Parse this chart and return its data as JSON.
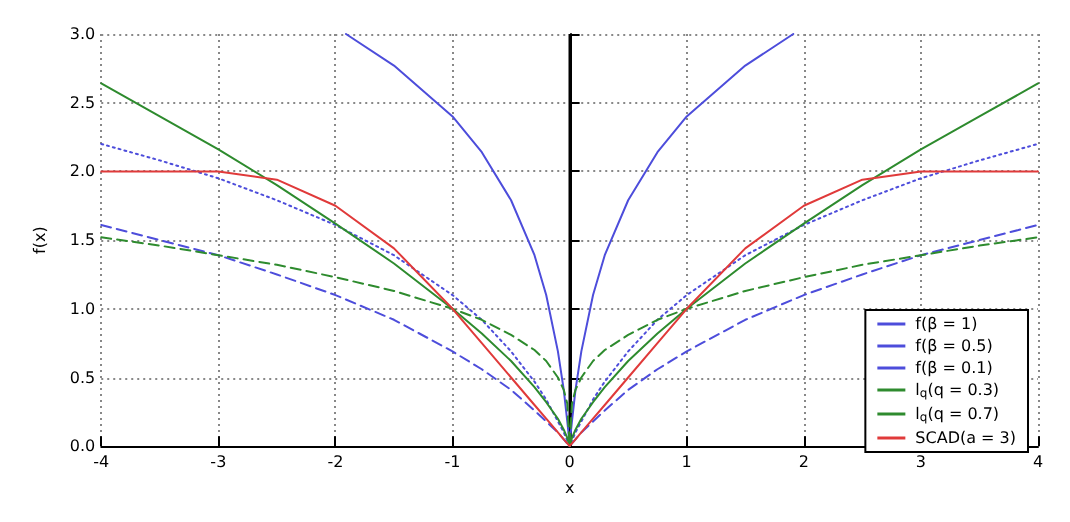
{
  "chart_data": {
    "type": "line",
    "xlabel": "x",
    "ylabel": "f(x)",
    "xlim": [
      -4,
      4
    ],
    "xticks": [
      -4,
      -3,
      -2,
      -1,
      0,
      1,
      2,
      3,
      4
    ],
    "ylim": [
      0,
      3
    ],
    "yticks": [
      {
        "value": 0,
        "label": "0.0"
      },
      {
        "value": 0.5,
        "label": "0.5"
      },
      {
        "value": 1,
        "label": "1.0"
      },
      {
        "value": 1.5,
        "label": "1.5"
      },
      {
        "value": 2,
        "label": "2.0"
      },
      {
        "value": 2.5,
        "label": "2.5"
      },
      {
        "value": 3,
        "label": "3.0"
      }
    ],
    "grid": true,
    "legend": "bottom right",
    "marker": "none",
    "x": [
      -4,
      -3.5,
      -3,
      -2.5,
      -2,
      -1.5,
      -1,
      -0.75,
      -0.5,
      -0.3,
      -0.2,
      -0.1,
      -0.05,
      -0.02,
      0,
      0.02,
      0.05,
      0.1,
      0.2,
      0.3,
      0.5,
      0.75,
      1,
      1.5,
      2,
      2.5,
      3,
      3.5,
      4
    ],
    "series": [
      {
        "name": "f(β = 1)",
        "color": "#4d4ddb",
        "line_style": "dashed",
        "values": [
          1.61,
          1.5,
          1.39,
          1.25,
          1.1,
          0.92,
          0.69,
          0.56,
          0.41,
          0.26,
          0.18,
          0.1,
          0.05,
          0.02,
          0,
          0.02,
          0.05,
          0.1,
          0.18,
          0.26,
          0.41,
          0.56,
          0.69,
          0.92,
          1.1,
          1.25,
          1.39,
          1.5,
          1.61
        ]
      },
      {
        "name": "f(β = 0.5)",
        "color": "#4d4ddb",
        "line_style": "dotted",
        "values": [
          2.2,
          2.08,
          1.95,
          1.79,
          1.61,
          1.39,
          1.1,
          0.92,
          0.69,
          0.47,
          0.34,
          0.18,
          0.1,
          0.04,
          0,
          0.04,
          0.1,
          0.18,
          0.34,
          0.47,
          0.69,
          0.92,
          1.1,
          1.39,
          1.61,
          1.79,
          1.95,
          2.08,
          2.2
        ]
      },
      {
        "name": "f(β = 0.1)",
        "color": "#4d4ddb",
        "line_style": "solid",
        "x": [
          -1.91,
          -1.5,
          -1,
          -0.75,
          -0.5,
          -0.3,
          -0.2,
          -0.1,
          -0.05,
          -0.02,
          -0.01,
          0,
          0.01,
          0.02,
          0.05,
          0.1,
          0.2,
          0.3,
          0.5,
          0.75,
          1,
          1.5,
          1.91
        ],
        "values": [
          3,
          2.77,
          2.4,
          2.14,
          1.79,
          1.39,
          1.1,
          0.69,
          0.41,
          0.18,
          0.1,
          0,
          0.1,
          0.18,
          0.41,
          0.69,
          1.1,
          1.39,
          1.79,
          2.14,
          2.4,
          2.77,
          3
        ]
      },
      {
        "name": "l$_{q}$(q = 0.3)",
        "color": "#2e8b2e",
        "line_style": "dashed",
        "values": [
          1.52,
          1.46,
          1.39,
          1.32,
          1.23,
          1.13,
          1,
          0.92,
          0.81,
          0.7,
          0.62,
          0.5,
          0.41,
          0.31,
          0,
          0.31,
          0.41,
          0.5,
          0.62,
          0.7,
          0.81,
          0.92,
          1,
          1.13,
          1.23,
          1.32,
          1.39,
          1.46,
          1.52
        ]
      },
      {
        "name": "l$_{q}$(q = 0.7)",
        "color": "#2e8b2e",
        "line_style": "solid",
        "values": [
          2.64,
          2.4,
          2.16,
          1.9,
          1.62,
          1.33,
          1,
          0.82,
          0.62,
          0.43,
          0.32,
          0.2,
          0.12,
          0.06,
          0,
          0.06,
          0.12,
          0.2,
          0.32,
          0.43,
          0.62,
          0.82,
          1,
          1.33,
          1.62,
          1.9,
          2.16,
          2.4,
          2.64
        ]
      },
      {
        "name": "SCAD(a = 3)",
        "color": "#e03a3a",
        "line_style": "solid",
        "values": [
          2,
          2,
          2,
          1.94,
          1.75,
          1.44,
          1,
          0.75,
          0.5,
          0.3,
          0.2,
          0.1,
          0.05,
          0.02,
          0,
          0.02,
          0.05,
          0.1,
          0.2,
          0.3,
          0.5,
          0.75,
          1,
          1.44,
          1.75,
          1.94,
          2,
          2,
          2
        ]
      }
    ],
    "ref_lines": [
      {
        "axis": "x",
        "value": 0,
        "color": "#000000",
        "line_style": "solid"
      }
    ]
  }
}
